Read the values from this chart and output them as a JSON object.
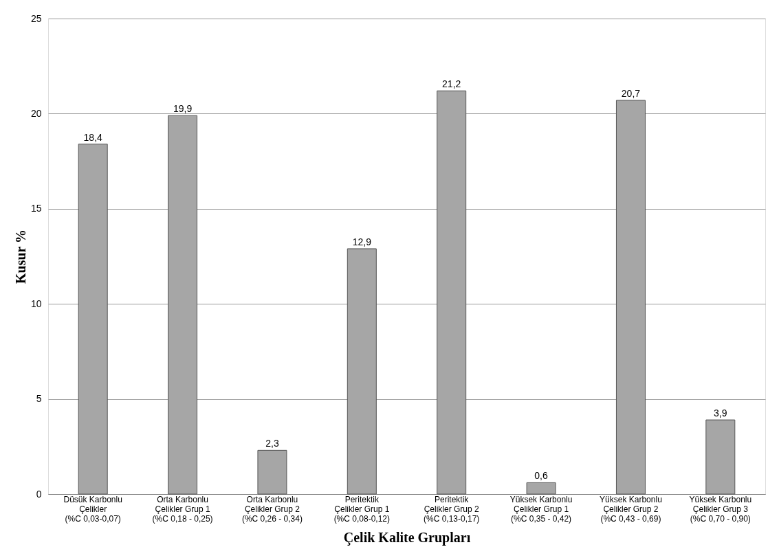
{
  "chart_data": {
    "type": "bar",
    "xlabel": "Çelik Kalite Grupları",
    "ylabel": "Kusur %",
    "categories": [
      "Düsük Karbonlu\nÇelikler\n(%C 0,03-0,07)",
      "Orta Karbonlu\nÇelikler Grup 1\n(%C 0,18 - 0,25)",
      "Orta Karbonlu\nÇelikler Grup 2\n(%C 0,26 - 0,34)",
      "Peritektik\nÇelikler Grup 1\n(%C 0,08-0,12)",
      "Peritektik\nÇelikler Grup 2\n(%C 0,13-0,17)",
      "Yüksek Karbonlu\nÇelikler Grup 1\n(%C 0,35 - 0,42)",
      "Yüksek Karbonlu\nÇelikler Grup 2\n(%C 0,43 - 0,69)",
      "Yüksek Karbonlu\nÇelikler Grup 3\n(%C 0,70 - 0,90)"
    ],
    "values": [
      18.4,
      19.9,
      2.3,
      12.9,
      21.2,
      0.6,
      20.7,
      3.9
    ],
    "value_labels": [
      "18,4",
      "19,9",
      "2,3",
      "12,9",
      "21,2",
      "0,6",
      "20,7",
      "3,9"
    ],
    "color": "#a6a6a6",
    "ylim": [
      0,
      25
    ],
    "yticks": [
      0,
      5,
      10,
      15,
      20,
      25
    ],
    "grid": "y"
  }
}
